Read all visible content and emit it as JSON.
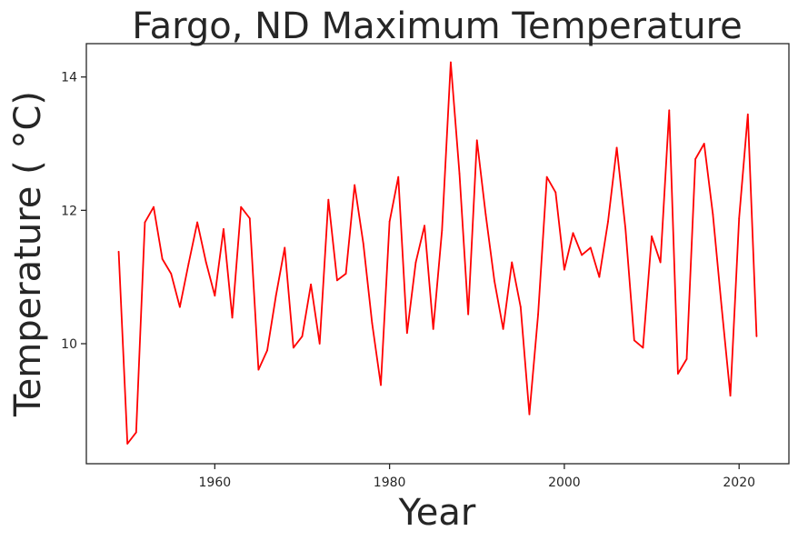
{
  "chart_data": {
    "type": "line",
    "title": "Fargo, ND Maximum Temperature",
    "xlabel": "Year",
    "ylabel": "Temperature ( °C)",
    "xlim": [
      1945.3,
      2025.7
    ],
    "ylim": [
      8.2,
      14.5
    ],
    "xticks": [
      1960,
      1980,
      2000,
      2020
    ],
    "yticks": [
      10,
      12,
      14
    ],
    "grid": false,
    "line_color": "#ff0000",
    "series": [
      {
        "x": [
          1949,
          1950,
          1951,
          1952,
          1953,
          1954,
          1955,
          1956,
          1957,
          1958,
          1959,
          1960,
          1961,
          1962,
          1963,
          1964,
          1965,
          1966,
          1967,
          1968,
          1969,
          1970,
          1971,
          1972,
          1973,
          1974,
          1975,
          1976,
          1977,
          1978,
          1979,
          1980,
          1981,
          1982,
          1983,
          1984,
          1985,
          1986,
          1987,
          1988,
          1989,
          1990,
          1991,
          1992,
          1993,
          1994,
          1995,
          1996,
          1997,
          1998,
          1999,
          2000,
          2001,
          2002,
          2003,
          2004,
          2005,
          2006,
          2007,
          2008,
          2009,
          2010,
          2011,
          2012,
          2013,
          2014,
          2015,
          2016,
          2017,
          2018,
          2019,
          2020,
          2021,
          2022
        ],
        "values": [
          11.38,
          8.5,
          8.67,
          11.82,
          12.05,
          11.27,
          11.05,
          10.55,
          11.2,
          11.82,
          11.22,
          10.72,
          11.72,
          10.39,
          12.05,
          11.88,
          9.61,
          9.9,
          10.72,
          11.44,
          9.94,
          10.11,
          10.89,
          10.0,
          12.16,
          10.95,
          11.05,
          12.38,
          11.5,
          10.31,
          9.38,
          11.83,
          12.5,
          10.16,
          11.22,
          11.77,
          10.22,
          11.7,
          14.22,
          12.55,
          10.44,
          13.05,
          11.94,
          10.94,
          10.22,
          11.22,
          10.55,
          8.94,
          10.44,
          12.5,
          12.27,
          11.11,
          11.66,
          11.33,
          11.44,
          11.0,
          11.83,
          12.94,
          11.72,
          10.05,
          9.94,
          11.61,
          11.22,
          13.5,
          9.55,
          9.77,
          12.77,
          13.0,
          11.94,
          10.55,
          9.22,
          11.88,
          13.44,
          10.11
        ]
      }
    ]
  }
}
